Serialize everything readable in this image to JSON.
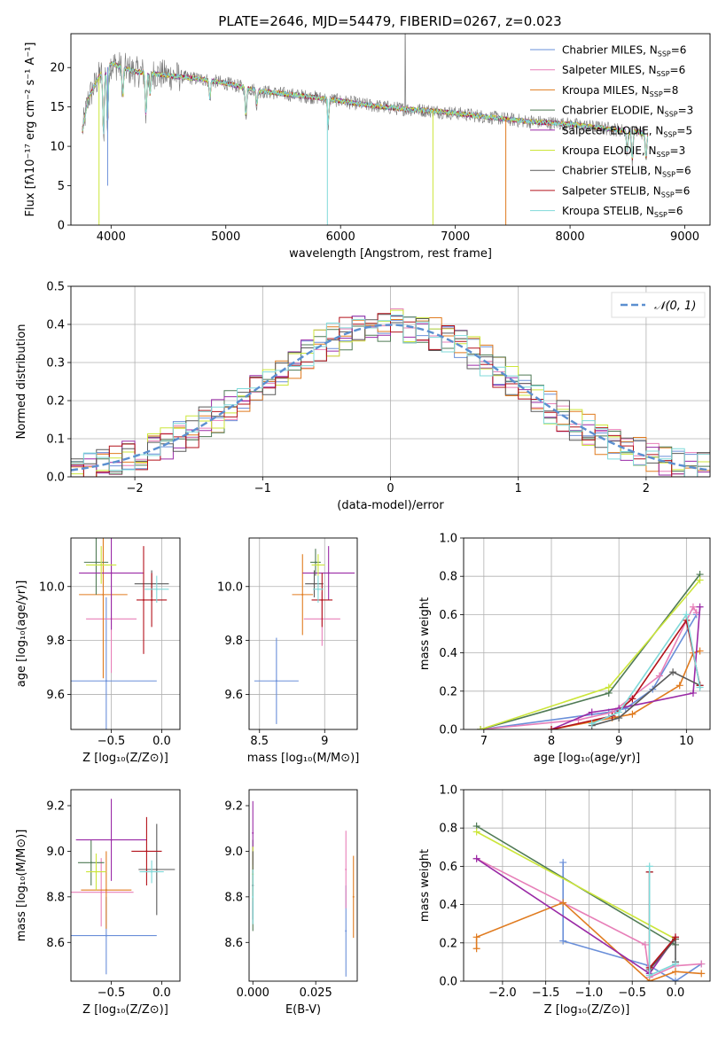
{
  "figure_title": "PLATE=2646, MJD=54479, FIBERID=0267, z=0.023",
  "colors": {
    "chabrier_miles": "#6a8fd9",
    "salpeter_miles": "#e77fb8",
    "kroupa_miles": "#e07b1f",
    "chabrier_elodie": "#4f7a55",
    "salpeter_elodie": "#9a2aa6",
    "kroupa_elodie": "#cce63a",
    "chabrier_stelib": "#5a5a5a",
    "salpeter_stelib": "#b3121b",
    "kroupa_stelib": "#7fd9d9"
  },
  "legend_models": [
    {
      "prefix": "Chabrier MILES, N",
      "sub": "SSP",
      "suffix": "=6",
      "color_key": "chabrier_miles"
    },
    {
      "prefix": "Salpeter MILES, N",
      "sub": "SSP",
      "suffix": "=6",
      "color_key": "salpeter_miles"
    },
    {
      "prefix": "Kroupa MILES, N",
      "sub": "SSP",
      "suffix": "=8",
      "color_key": "kroupa_miles"
    },
    {
      "prefix": "Chabrier ELODIE, N",
      "sub": "SSP",
      "suffix": "=3",
      "color_key": "chabrier_elodie"
    },
    {
      "prefix": "Salpeter ELODIE, N",
      "sub": "SSP",
      "suffix": "=5",
      "color_key": "salpeter_elodie"
    },
    {
      "prefix": "Kroupa ELODIE, N",
      "sub": "SSP",
      "suffix": "=3",
      "color_key": "kroupa_elodie"
    },
    {
      "prefix": "Chabrier STELIB, N",
      "sub": "SSP",
      "suffix": "=6",
      "color_key": "chabrier_stelib"
    },
    {
      "prefix": "Salpeter STELIB, N",
      "sub": "SSP",
      "suffix": "=6",
      "color_key": "salpeter_stelib"
    },
    {
      "prefix": "Kroupa STELIB, N",
      "sub": "SSP",
      "suffix": "=6",
      "color_key": "kroupa_stelib"
    }
  ],
  "chart_data": [
    {
      "id": "spectrum",
      "type": "line",
      "xlabel": "wavelength [Angstrom, rest frame]",
      "ylabel": "Flux [fλ10⁻¹⁷ erg cm⁻² s⁻¹ A⁻¹]",
      "xlim": [
        3650,
        9220
      ],
      "ylim": [
        0,
        24.3
      ],
      "xticks": [
        4000,
        5000,
        6000,
        7000,
        8000,
        9000
      ],
      "yticks": [
        0,
        5,
        10,
        15,
        20
      ],
      "continuum": [
        [
          3750,
          12
        ],
        [
          3800,
          16
        ],
        [
          3900,
          19
        ],
        [
          4000,
          20.5
        ],
        [
          4100,
          20
        ],
        [
          4200,
          19.5
        ],
        [
          4500,
          19
        ],
        [
          4800,
          18.5
        ],
        [
          5000,
          18
        ],
        [
          5300,
          17
        ],
        [
          5600,
          16.5
        ],
        [
          5900,
          16
        ],
        [
          6200,
          15.3
        ],
        [
          6500,
          14.8
        ],
        [
          6800,
          14.5
        ],
        [
          7000,
          14.2
        ],
        [
          7300,
          13.7
        ],
        [
          7600,
          13.2
        ],
        [
          8000,
          12.8
        ],
        [
          8300,
          12.3
        ],
        [
          8600,
          11.8
        ],
        [
          8680,
          11.5
        ]
      ],
      "absorption_lines": [
        [
          3934,
          9
        ],
        [
          3969,
          8
        ],
        [
          4102,
          4
        ],
        [
          4304,
          6
        ],
        [
          4340,
          3
        ],
        [
          4861,
          2.5
        ],
        [
          5175,
          4
        ],
        [
          5270,
          2
        ],
        [
          5892,
          3.5
        ],
        [
          8498,
          3
        ],
        [
          8542,
          4
        ],
        [
          8662,
          3.5
        ]
      ],
      "dropouts": [
        {
          "model": "kroupa_elodie",
          "x": 3895,
          "y_bottom": 0
        },
        {
          "model": "chabrier_miles",
          "x": 3970,
          "y_bottom": 5
        },
        {
          "model": "kroupa_stelib",
          "x": 5885,
          "y_bottom": 0
        },
        {
          "model": "kroupa_elodie",
          "x": 6805,
          "y_bottom": 0
        },
        {
          "model": "kroupa_miles",
          "x": 7440,
          "y_bottom": 0
        }
      ]
    },
    {
      "id": "residuals",
      "type": "step",
      "xlabel": "(data-model)/error",
      "ylabel": "Normed distribution",
      "xlim": [
        -2.5,
        2.5
      ],
      "ylim": [
        0,
        0.5
      ],
      "xticks": [
        -2,
        -1,
        0,
        1,
        2
      ],
      "xticklabels": [
        "−2",
        "−1",
        "0",
        "1",
        "2"
      ],
      "yticks": [
        0.0,
        0.1,
        0.2,
        0.3,
        0.4,
        0.5
      ],
      "bin_width": 0.1,
      "gaussian_label": "𝒩(0, 1)",
      "gaussian_color": "#5b8fd0"
    },
    {
      "id": "age_vs_z",
      "type": "scatter",
      "xlabel": "Z [log₁₀(Z/Z⊙)]",
      "ylabel": "age  [log₁₀(age/yr)]",
      "xlim": [
        -0.9,
        0.18
      ],
      "ylim": [
        9.47,
        10.18
      ],
      "xticks": [
        -0.5,
        0.0
      ],
      "xticklabels": [
        "−0.5",
        "0.0"
      ],
      "yticks": [
        9.6,
        9.8,
        10.0
      ],
      "points": [
        {
          "model": "chabrier_miles",
          "x": -0.55,
          "xerr": 0.5,
          "y": 9.65,
          "yerr": 0.31
        },
        {
          "model": "salpeter_miles",
          "x": -0.5,
          "xerr": 0.25,
          "y": 9.88,
          "yerr": 0.2
        },
        {
          "model": "kroupa_miles",
          "x": -0.58,
          "xerr": 0.24,
          "y": 9.97,
          "yerr": 0.31
        },
        {
          "model": "chabrier_elodie",
          "x": -0.65,
          "xerr": 0.12,
          "y": 10.09,
          "yerr": 0.12
        },
        {
          "model": "salpeter_elodie",
          "x": -0.5,
          "xerr": 0.32,
          "y": 10.05,
          "yerr": 0.21
        },
        {
          "model": "kroupa_elodie",
          "x": -0.6,
          "xerr": 0.15,
          "y": 10.08,
          "yerr": 0.07
        },
        {
          "model": "chabrier_stelib",
          "x": -0.1,
          "xerr": 0.17,
          "y": 10.01,
          "yerr": 0.05
        },
        {
          "model": "salpeter_stelib",
          "x": -0.1,
          "xerr": 0.15,
          "y": 9.95,
          "yerr": 0.1
        },
        {
          "model": "kroupa_stelib",
          "x": -0.05,
          "xerr": 0.12,
          "y": 9.99,
          "yerr": 0.05
        },
        {
          "model": "salpeter_stelib",
          "x": -0.18,
          "xerr": 0.0,
          "y": 9.95,
          "yerr": 0.2
        }
      ]
    },
    {
      "id": "age_vs_mass",
      "type": "scatter",
      "xlabel": "mass [log₁₀(M/M⊙)]",
      "ylabel": "",
      "xlim": [
        8.42,
        9.25
      ],
      "ylim": [
        9.47,
        10.18
      ],
      "xticks": [
        8.5,
        9.0
      ],
      "yticks": [
        9.6,
        9.8,
        10.0
      ],
      "points": [
        {
          "model": "chabrier_miles",
          "x": 8.63,
          "xerr": 0.17,
          "y": 9.65,
          "yerr": 0.16
        },
        {
          "model": "salpeter_miles",
          "x": 8.98,
          "xerr": 0.14,
          "y": 9.88,
          "yerr": 0.1
        },
        {
          "model": "kroupa_miles",
          "x": 8.83,
          "xerr": 0.08,
          "y": 9.97,
          "yerr": 0.15
        },
        {
          "model": "chabrier_elodie",
          "x": 8.93,
          "xerr": 0.04,
          "y": 10.09,
          "yerr": 0.05
        },
        {
          "model": "salpeter_elodie",
          "x": 9.03,
          "xerr": 0.2,
          "y": 10.05,
          "yerr": 0.1
        },
        {
          "model": "kroupa_elodie",
          "x": 8.95,
          "xerr": 0.05,
          "y": 10.08,
          "yerr": 0.04
        },
        {
          "model": "chabrier_stelib",
          "x": 8.92,
          "xerr": 0.07,
          "y": 10.01,
          "yerr": 0.05
        },
        {
          "model": "salpeter_stelib",
          "x": 8.98,
          "xerr": 0.08,
          "y": 9.95,
          "yerr": 0.1
        },
        {
          "model": "kroupa_stelib",
          "x": 8.95,
          "xerr": 0.04,
          "y": 9.99,
          "yerr": 0.05
        }
      ]
    },
    {
      "id": "weight_vs_age",
      "type": "line",
      "xlabel": "age  [log₁₀(age/yr)]",
      "ylabel": "mass weight",
      "xlim": [
        6.7,
        10.35
      ],
      "ylim": [
        0,
        1
      ],
      "xticks": [
        7,
        8,
        9,
        10
      ],
      "yticks": [
        0.0,
        0.2,
        0.4,
        0.6,
        0.8,
        1.0
      ],
      "series": [
        {
          "model": "chabrier_miles",
          "x": [
            6.95,
            8.85,
            9.1,
            9.5,
            10.15
          ],
          "y": [
            0.0,
            0.09,
            0.11,
            0.21,
            0.6
          ]
        },
        {
          "model": "salpeter_miles",
          "x": [
            6.95,
            8.4,
            8.9,
            9.6,
            10.1,
            10.15
          ],
          "y": [
            0.0,
            0.05,
            0.09,
            0.28,
            0.64,
            0.61
          ]
        },
        {
          "model": "kroupa_miles",
          "x": [
            8.0,
            8.9,
            9.2,
            9.9,
            10.1,
            10.2
          ],
          "y": [
            0.0,
            0.06,
            0.08,
            0.23,
            0.4,
            0.41
          ]
        },
        {
          "model": "chabrier_elodie",
          "x": [
            6.95,
            8.85,
            10.2
          ],
          "y": [
            0.0,
            0.19,
            0.81
          ]
        },
        {
          "model": "salpeter_elodie",
          "x": [
            8.0,
            8.6,
            9.0,
            10.1,
            10.2
          ],
          "y": [
            0.0,
            0.09,
            0.11,
            0.19,
            0.64
          ]
        },
        {
          "model": "kroupa_elodie",
          "x": [
            6.95,
            8.85,
            10.2
          ],
          "y": [
            0.0,
            0.22,
            0.78
          ]
        },
        {
          "model": "chabrier_stelib",
          "x": [
            8.6,
            9.0,
            9.8,
            10.2
          ],
          "y": [
            0.02,
            0.06,
            0.3,
            0.23
          ]
        },
        {
          "model": "salpeter_stelib",
          "x": [
            8.0,
            8.9,
            9.2,
            10.0,
            10.2
          ],
          "y": [
            0.0,
            0.07,
            0.16,
            0.57,
            0.23
          ]
        },
        {
          "model": "kroupa_stelib",
          "x": [
            8.6,
            9.0,
            10.0,
            10.2
          ],
          "y": [
            0.03,
            0.09,
            0.6,
            0.22
          ]
        }
      ]
    },
    {
      "id": "mass_vs_z",
      "type": "scatter",
      "xlabel": "Z [log₁₀(Z/Z⊙)]",
      "ylabel": "mass [log₁₀(M/M⊙)]",
      "xlim": [
        -0.9,
        0.18
      ],
      "ylim": [
        8.43,
        9.27
      ],
      "xticks": [
        -0.5,
        0.0
      ],
      "xticklabels": [
        "−0.5",
        "0.0"
      ],
      "yticks": [
        8.6,
        8.8,
        9.0,
        9.2
      ],
      "points": [
        {
          "model": "chabrier_miles",
          "x": -0.55,
          "xerr": 0.5,
          "y": 8.63,
          "yerr": 0.17
        },
        {
          "model": "salpeter_miles",
          "x": -0.6,
          "xerr": 0.32,
          "y": 8.82,
          "yerr": 0.15
        },
        {
          "model": "kroupa_miles",
          "x": -0.55,
          "xerr": 0.25,
          "y": 8.83,
          "yerr": 0.17
        },
        {
          "model": "chabrier_elodie",
          "x": -0.7,
          "xerr": 0.13,
          "y": 8.95,
          "yerr": 0.1
        },
        {
          "model": "salpeter_elodie",
          "x": -0.5,
          "xerr": 0.35,
          "y": 9.05,
          "yerr": 0.18
        },
        {
          "model": "kroupa_elodie",
          "x": -0.65,
          "xerr": 0.1,
          "y": 8.91,
          "yerr": 0.08
        },
        {
          "model": "chabrier_stelib",
          "x": -0.05,
          "xerr": 0.18,
          "y": 8.92,
          "yerr": 0.2
        },
        {
          "model": "salpeter_stelib",
          "x": -0.15,
          "xerr": 0.15,
          "y": 9.0,
          "yerr": 0.15
        },
        {
          "model": "kroupa_stelib",
          "x": -0.1,
          "xerr": 0.12,
          "y": 8.91,
          "yerr": 0.05
        }
      ]
    },
    {
      "id": "mass_vs_ebv",
      "type": "scatter",
      "xlabel": "E(B-V)",
      "ylabel": "",
      "xlim": [
        -0.0015,
        0.0415
      ],
      "ylim": [
        8.43,
        9.27
      ],
      "xticks": [
        0.0,
        0.025
      ],
      "xticklabels": [
        "0.000",
        "0.025"
      ],
      "yticks": [
        8.6,
        8.8,
        9.0,
        9.2
      ],
      "points": [
        {
          "model": "chabrier_miles",
          "x": 0.037,
          "xerr": 0,
          "y": 8.65,
          "yerr": 0.2
        },
        {
          "model": "salpeter_miles",
          "x": 0.037,
          "xerr": 0,
          "y": 8.92,
          "yerr": 0.17
        },
        {
          "model": "kroupa_miles",
          "x": 0.04,
          "xerr": 0,
          "y": 8.8,
          "yerr": 0.18
        },
        {
          "model": "chabrier_elodie",
          "x": 0.0,
          "xerr": 0,
          "y": 8.85,
          "yerr": 0.2
        },
        {
          "model": "salpeter_elodie",
          "x": 0.0,
          "xerr": 0,
          "y": 9.08,
          "yerr": 0.14
        },
        {
          "model": "kroupa_elodie",
          "x": 0.0,
          "xerr": 0,
          "y": 8.9,
          "yerr": 0.12
        },
        {
          "model": "chabrier_stelib",
          "x": 0.0,
          "xerr": 0,
          "y": 8.85,
          "yerr": 0.15
        },
        {
          "model": "kroupa_stelib",
          "x": 0.0,
          "xerr": 0,
          "y": 8.8,
          "yerr": 0.12
        }
      ]
    },
    {
      "id": "weight_vs_z",
      "type": "line",
      "xlabel": "Z [log₁₀(Z/Z⊙)]",
      "ylabel": "mass weight",
      "xlim": [
        -2.45,
        0.4
      ],
      "ylim": [
        0,
        1
      ],
      "xticks": [
        -2.0,
        -1.5,
        -1.0,
        -0.5,
        0.0
      ],
      "xticklabels": [
        "−2.0",
        "−1.5",
        "−1.0",
        "−0.5",
        "0.0"
      ],
      "yticks": [
        0.0,
        0.2,
        0.4,
        0.6,
        0.8,
        1.0
      ],
      "series": [
        {
          "model": "chabrier_miles",
          "x": [
            -1.3,
            -1.3,
            -0.3,
            0.0,
            0.3
          ],
          "y": [
            0.62,
            0.21,
            0.08,
            0.0,
            0.09
          ]
        },
        {
          "model": "salpeter_miles",
          "x": [
            -2.3,
            -0.35,
            -0.3,
            0.0,
            0.3
          ],
          "y": [
            0.64,
            0.19,
            0.02,
            0.08,
            0.09
          ]
        },
        {
          "model": "kroupa_miles",
          "x": [
            -2.3,
            -2.3,
            -1.3,
            -0.3,
            0.0,
            0.3
          ],
          "y": [
            0.17,
            0.23,
            0.41,
            0.0,
            0.05,
            0.04
          ]
        },
        {
          "model": "chabrier_elodie",
          "x": [
            -2.3,
            0.0
          ],
          "y": [
            0.81,
            0.19
          ]
        },
        {
          "model": "salpeter_elodie",
          "x": [
            -2.3,
            -0.3,
            0.0
          ],
          "y": [
            0.64,
            0.04,
            0.23
          ]
        },
        {
          "model": "kroupa_elodie",
          "x": [
            -2.3,
            0.0
          ],
          "y": [
            0.78,
            0.22
          ]
        },
        {
          "model": "chabrier_stelib",
          "x": [
            -0.3,
            -0.3,
            0.0,
            0.0
          ],
          "y": [
            0.57,
            0.06,
            0.22,
            0.1
          ]
        },
        {
          "model": "salpeter_stelib",
          "x": [
            -0.3,
            -0.3,
            0.0
          ],
          "y": [
            0.57,
            0.07,
            0.23
          ]
        },
        {
          "model": "kroupa_stelib",
          "x": [
            -0.3,
            -0.3,
            0.0
          ],
          "y": [
            0.6,
            0.03,
            0.09
          ]
        }
      ]
    }
  ]
}
